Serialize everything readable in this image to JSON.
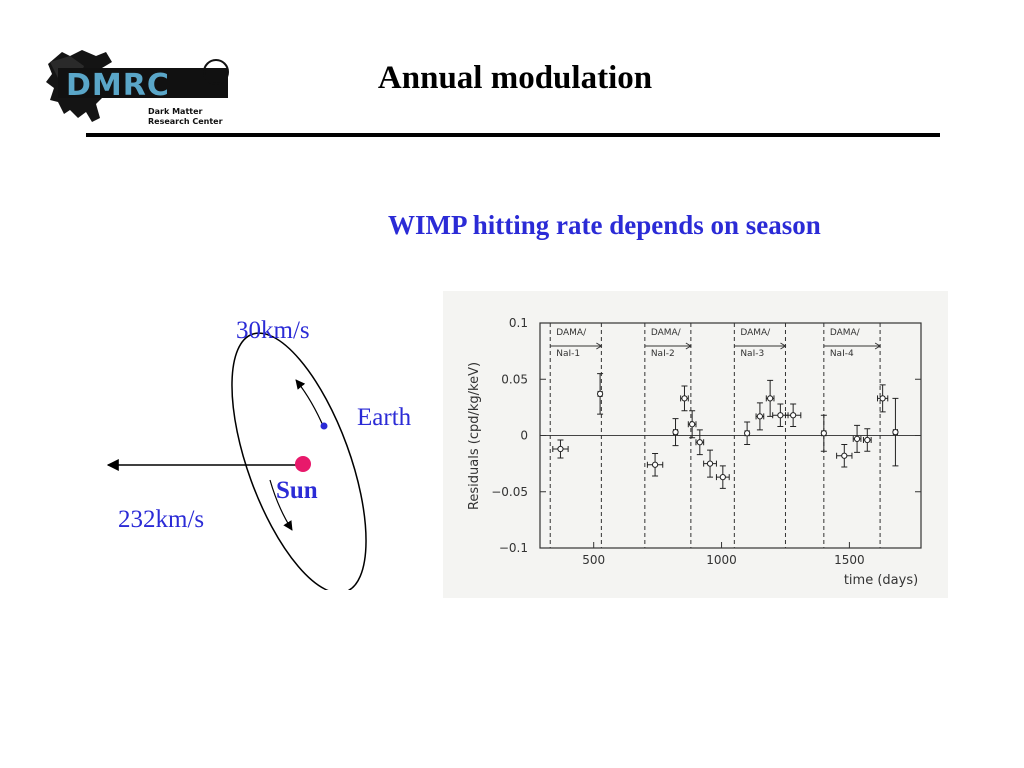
{
  "slide": {
    "title": "Annual modulation",
    "subtitle": "WIMP hitting rate depends on season",
    "logo": {
      "text": "DMRC",
      "tagline_line1": "Dark Matter",
      "tagline_line2": "Research Center"
    }
  },
  "orbit_diagram": {
    "earth_speed": "30km/s",
    "earth_label": "Earth",
    "sun_label": "Sun",
    "sun_speed": "232km/s",
    "colors": {
      "sun": "#e8196b",
      "earth": "#2b2bd6",
      "labels": "#2b2bd6"
    }
  },
  "chart_data": {
    "type": "scatter",
    "title": "",
    "xlabel": "time (days)",
    "ylabel": "Residuals (cpd/kg/keV)",
    "xlim": [
      290,
      1780
    ],
    "ylim": [
      -0.1,
      0.1
    ],
    "x_ticks": [
      500,
      1000,
      1500
    ],
    "y_ticks": [
      -0.1,
      -0.05,
      0,
      0.05,
      0.1
    ],
    "y_tick_labels": [
      "−0.1",
      "−0.05",
      "0",
      "0.05",
      "0.1"
    ],
    "zero_line": true,
    "grid": false,
    "periods": [
      {
        "label_line1": "DAMA/",
        "label_line2": "NaI-1",
        "start": 330,
        "end": 530
      },
      {
        "label_line1": "DAMA/",
        "label_line2": "NaI-2",
        "start": 700,
        "end": 880
      },
      {
        "label_line1": "DAMA/",
        "label_line2": "NaI-3",
        "start": 1050,
        "end": 1250
      },
      {
        "label_line1": "DAMA/",
        "label_line2": "NaI-4",
        "start": 1400,
        "end": 1620
      }
    ],
    "points": [
      {
        "x": 370,
        "y": -0.012,
        "xerr": 30,
        "yerr": 0.008
      },
      {
        "x": 525,
        "y": 0.037,
        "xerr": 8,
        "yerr": 0.018
      },
      {
        "x": 740,
        "y": -0.026,
        "xerr": 30,
        "yerr": 0.01
      },
      {
        "x": 820,
        "y": 0.003,
        "xerr": 8,
        "yerr": 0.012
      },
      {
        "x": 855,
        "y": 0.033,
        "xerr": 15,
        "yerr": 0.011
      },
      {
        "x": 885,
        "y": 0.01,
        "xerr": 15,
        "yerr": 0.012
      },
      {
        "x": 915,
        "y": -0.006,
        "xerr": 15,
        "yerr": 0.011
      },
      {
        "x": 955,
        "y": -0.025,
        "xerr": 25,
        "yerr": 0.012
      },
      {
        "x": 1005,
        "y": -0.037,
        "xerr": 25,
        "yerr": 0.01
      },
      {
        "x": 1100,
        "y": 0.002,
        "xerr": 8,
        "yerr": 0.01
      },
      {
        "x": 1150,
        "y": 0.017,
        "xerr": 15,
        "yerr": 0.012
      },
      {
        "x": 1190,
        "y": 0.033,
        "xerr": 15,
        "yerr": 0.016
      },
      {
        "x": 1230,
        "y": 0.018,
        "xerr": 30,
        "yerr": 0.01
      },
      {
        "x": 1280,
        "y": 0.018,
        "xerr": 30,
        "yerr": 0.01
      },
      {
        "x": 1400,
        "y": 0.002,
        "xerr": 8,
        "yerr": 0.016
      },
      {
        "x": 1480,
        "y": -0.018,
        "xerr": 30,
        "yerr": 0.01
      },
      {
        "x": 1530,
        "y": -0.003,
        "xerr": 15,
        "yerr": 0.012
      },
      {
        "x": 1570,
        "y": -0.004,
        "xerr": 15,
        "yerr": 0.01
      },
      {
        "x": 1630,
        "y": 0.033,
        "xerr": 20,
        "yerr": 0.012
      },
      {
        "x": 1680,
        "y": 0.003,
        "xerr": 8,
        "yerr": 0.03
      }
    ]
  }
}
